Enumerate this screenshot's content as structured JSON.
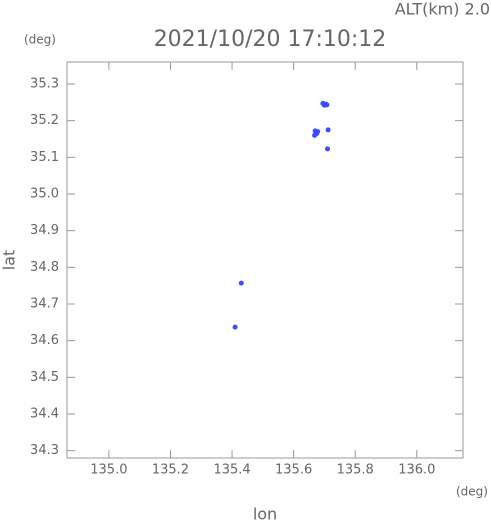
{
  "chart_data": {
    "type": "scatter",
    "title": "2021/10/20 17:10:12",
    "subtitle": "ALT(km) 2.0",
    "xlabel": "lon",
    "ylabel": "lat",
    "x_unit": "(deg)",
    "y_unit": "(deg)",
    "series": [
      {
        "color": "#3b4cff",
        "x": [
          135.695,
          135.705,
          135.7,
          135.708,
          135.67,
          135.675,
          135.668,
          135.678,
          135.712,
          135.71,
          135.43,
          135.41
        ],
        "y": [
          35.247,
          35.245,
          35.242,
          35.243,
          35.172,
          35.165,
          35.16,
          35.17,
          35.175,
          35.123,
          34.757,
          34.637
        ]
      }
    ],
    "xlim": [
      134.864,
      136.15
    ],
    "ylim": [
      34.28,
      35.36
    ],
    "xticks": [
      {
        "value": 135,
        "label": "135.0"
      },
      135.2,
      135.4,
      135.6,
      135.8,
      {
        "value": 136,
        "label": "136.0"
      }
    ],
    "yticks": [
      35.3,
      35.2,
      35.1,
      {
        "value": 35,
        "label": "35.0"
      },
      34.9,
      34.8,
      34.7,
      34.6,
      34.5,
      34.4,
      34.3
    ]
  }
}
